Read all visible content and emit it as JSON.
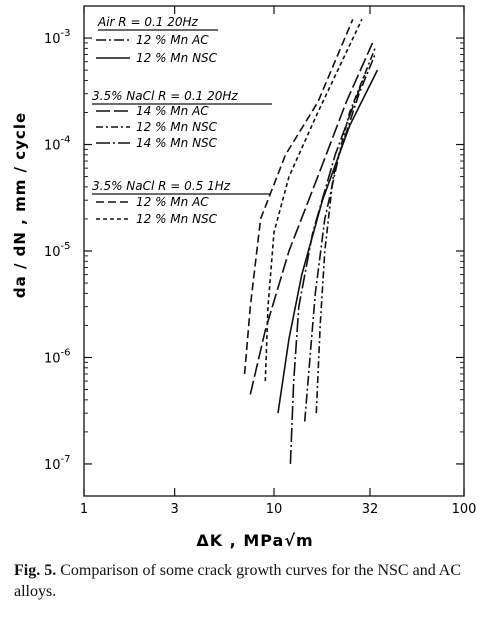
{
  "chart_data": {
    "type": "line",
    "xscale": "log",
    "yscale": "log",
    "xlim": [
      1,
      100
    ],
    "ylim": [
      5e-08,
      0.002
    ],
    "xlabel": "ΔK , MPa√m",
    "ylabel": "da / dN  ,  mm / cycle",
    "x_ticks": [
      {
        "value": 1,
        "label": "1"
      },
      {
        "value": 3,
        "label": "3"
      },
      {
        "value": 10,
        "label": "10"
      },
      {
        "value": 32,
        "label": "32"
      },
      {
        "value": 100,
        "label": "100"
      }
    ],
    "y_ticks": [
      {
        "value": 0.001,
        "base": "10",
        "exp": "-3"
      },
      {
        "value": 0.0001,
        "base": "10",
        "exp": "-4"
      },
      {
        "value": 1e-05,
        "base": "10",
        "exp": "-5"
      },
      {
        "value": 1e-06,
        "base": "10",
        "exp": "-6"
      },
      {
        "value": 1e-07,
        "base": "10",
        "exp": "-7"
      }
    ],
    "legend_groups": [
      {
        "header": "Air   R = 0.1   20Hz",
        "entries": [
          {
            "label": "12 % Mn  AC",
            "dash": "dashdot"
          },
          {
            "label": "12 % Mn  NSC",
            "dash": "solid"
          }
        ]
      },
      {
        "header": "3.5% NaCl  R = 0.1   20Hz",
        "entries": [
          {
            "label": "14 % Mn  AC",
            "dash": "longdash"
          },
          {
            "label": "12 % Mn  NSC",
            "dash": "dashdot2"
          },
          {
            "label": "14 % Mn  NSC",
            "dash": "longdashdot"
          }
        ]
      },
      {
        "header": "3.5% NaCl  R = 0.5   1Hz",
        "entries": [
          {
            "label": "12 % Mn  AC",
            "dash": "dash"
          },
          {
            "label": "12 % Mn  NSC",
            "dash": "shortdash"
          }
        ]
      }
    ],
    "series": [
      {
        "dash": "dashdot",
        "points": [
          [
            14.5,
            2.5e-07
          ],
          [
            16.5,
            4e-06
          ],
          [
            18.5,
            2e-05
          ],
          [
            22,
            8e-05
          ],
          [
            28,
            0.0003
          ],
          [
            34,
            0.0007
          ]
        ]
      },
      {
        "dash": "solid",
        "points": [
          [
            10.5,
            3e-07
          ],
          [
            12,
            1.5e-06
          ],
          [
            14,
            6e-06
          ],
          [
            18,
            3e-05
          ],
          [
            25,
            0.00015
          ],
          [
            35,
            0.0005
          ]
        ]
      },
      {
        "dash": "longdash",
        "points": [
          [
            7.5,
            4.5e-07
          ],
          [
            9,
            1.8e-06
          ],
          [
            12,
            1e-05
          ],
          [
            17,
            5e-05
          ],
          [
            24,
            0.00025
          ],
          [
            33,
            0.0009
          ]
        ]
      },
      {
        "dash": "dashdot2",
        "points": [
          [
            16.7,
            3e-07
          ],
          [
            17.5,
            2e-06
          ],
          [
            18.5,
            1e-05
          ],
          [
            20.5,
            5e-05
          ],
          [
            25,
            0.0002
          ],
          [
            34,
            0.0008
          ]
        ]
      },
      {
        "dash": "longdashdot",
        "points": [
          [
            12.2,
            1e-07
          ],
          [
            12.7,
            6e-07
          ],
          [
            13.5,
            3e-06
          ],
          [
            16,
            1.5e-05
          ],
          [
            21,
            8e-05
          ],
          [
            30,
            0.00045
          ]
        ]
      },
      {
        "dash": "dash",
        "points": [
          [
            7,
            7e-07
          ],
          [
            7.5,
            3e-06
          ],
          [
            8.5,
            2e-05
          ],
          [
            11.5,
            8e-05
          ],
          [
            17,
            0.00025
          ],
          [
            26,
            0.0015
          ]
        ]
      },
      {
        "dash": "shortdash",
        "points": [
          [
            9,
            6e-07
          ],
          [
            9.3,
            3e-06
          ],
          [
            10,
            1.5e-05
          ],
          [
            12,
            5e-05
          ],
          [
            17,
            0.0002
          ],
          [
            29,
            0.0015
          ]
        ]
      }
    ]
  },
  "caption": {
    "fig_label": "Fig. 5.",
    "text": " Comparison of some crack growth curves for the NSC and AC alloys."
  }
}
